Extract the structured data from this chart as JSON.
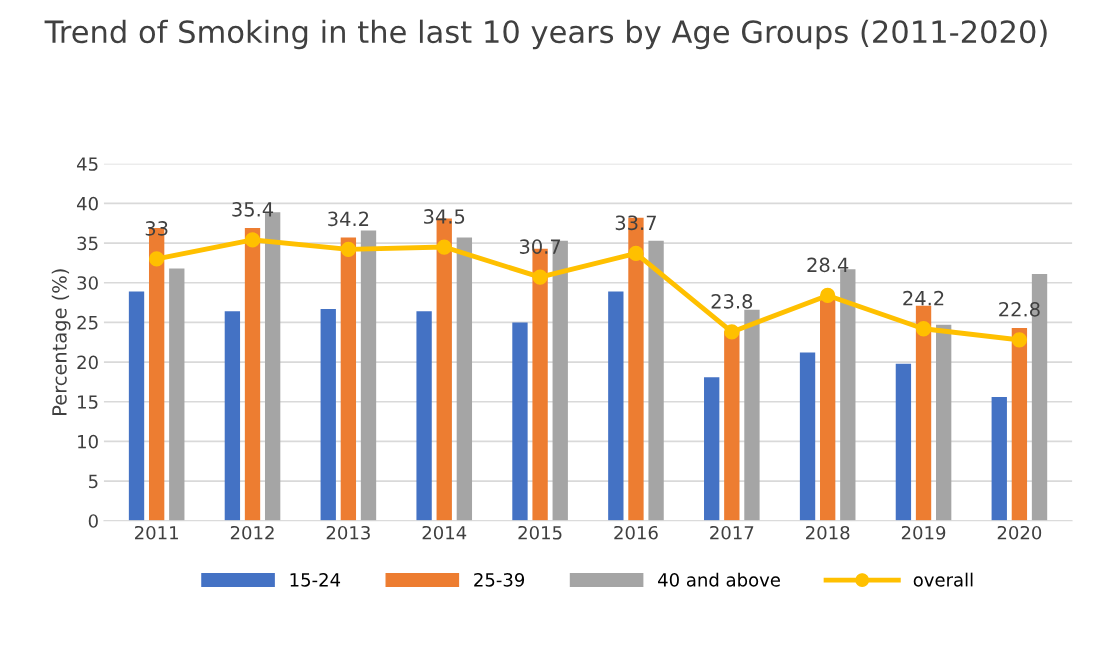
{
  "chart_data": {
    "type": "bar",
    "title": "Trend of Smoking in the last 10 years by Age Groups (2011-2020)",
    "ylabel": "Percentage (%)",
    "categories": [
      "2011",
      "2012",
      "2013",
      "2014",
      "2015",
      "2016",
      "2017",
      "2018",
      "2019",
      "2020"
    ],
    "series": [
      {
        "name": "15-24",
        "color": "#4472c4",
        "values": [
          28.9,
          26.4,
          26.7,
          26.4,
          25.0,
          28.9,
          18.1,
          21.2,
          19.8,
          15.6
        ]
      },
      {
        "name": "25-39",
        "color": "#ed7d31",
        "values": [
          36.9,
          36.9,
          35.7,
          38.1,
          34.3,
          38.2,
          23.9,
          28.0,
          27.1,
          24.3
        ]
      },
      {
        "name": "40 and above",
        "color": "#a5a5a5",
        "values": [
          31.8,
          38.9,
          36.6,
          35.7,
          35.3,
          35.3,
          26.6,
          31.7,
          24.7,
          31.1
        ]
      },
      {
        "name": "overall",
        "type": "line",
        "color": "#ffc000",
        "marker": "circle",
        "values": [
          33,
          35.4,
          34.2,
          34.5,
          30.7,
          33.7,
          23.8,
          28.4,
          24.2,
          22.8
        ],
        "value_labels": [
          "33",
          "35.4",
          "34.2",
          "34.5",
          "30.7",
          "33.7",
          "23.8",
          "28.4",
          "24.2",
          "22.8"
        ]
      }
    ],
    "ylim": [
      0,
      45
    ],
    "yticks": [
      0,
      5,
      10,
      15,
      20,
      25,
      30,
      35,
      40,
      45
    ],
    "grid": "y",
    "legend": "bottom"
  }
}
